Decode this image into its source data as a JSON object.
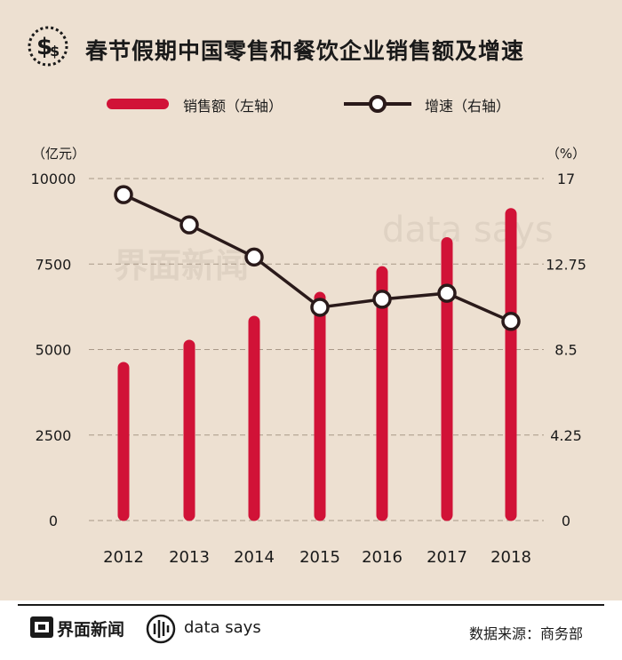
{
  "title": "春节假期中国零售和餐饮企业销售额及增速",
  "title_icon": "dollar-coin-icon",
  "legend": {
    "bar_label": "销售额（左轴）",
    "line_label": "增速（右轴）"
  },
  "watermark": {
    "brand1": "界面新闻",
    "brand2": "data says"
  },
  "footer": {
    "brand1": "界面新闻",
    "brand2": "data says",
    "source": "数据来源：商务部"
  },
  "colors": {
    "bar": "#d11237",
    "line": "#2a1a1a",
    "background": "#ede0d1",
    "grid": "#a89888"
  },
  "chart_data": {
    "type": "bar",
    "categories": [
      "2012",
      "2013",
      "2014",
      "2015",
      "2016",
      "2017",
      "2018"
    ],
    "series": [
      {
        "name": "销售额（左轴）",
        "type": "bar",
        "axis": "left",
        "values": [
          4650,
          5300,
          6000,
          6700,
          7450,
          8300,
          9150
        ]
      },
      {
        "name": "增速（右轴）",
        "type": "line",
        "axis": "right",
        "values": [
          16.2,
          14.7,
          13.1,
          10.6,
          11.0,
          11.3,
          9.9
        ]
      }
    ],
    "y_left": {
      "unit": "（亿元）",
      "range": [
        0,
        10000
      ],
      "ticks": [
        "0",
        "2500",
        "5000",
        "7500",
        "10000"
      ]
    },
    "y_right": {
      "unit": "（%）",
      "range": [
        0,
        17
      ],
      "ticks": [
        "0",
        "4.25",
        "8.5",
        "12.75",
        "17"
      ]
    },
    "grid": true,
    "legend_position": "top"
  }
}
